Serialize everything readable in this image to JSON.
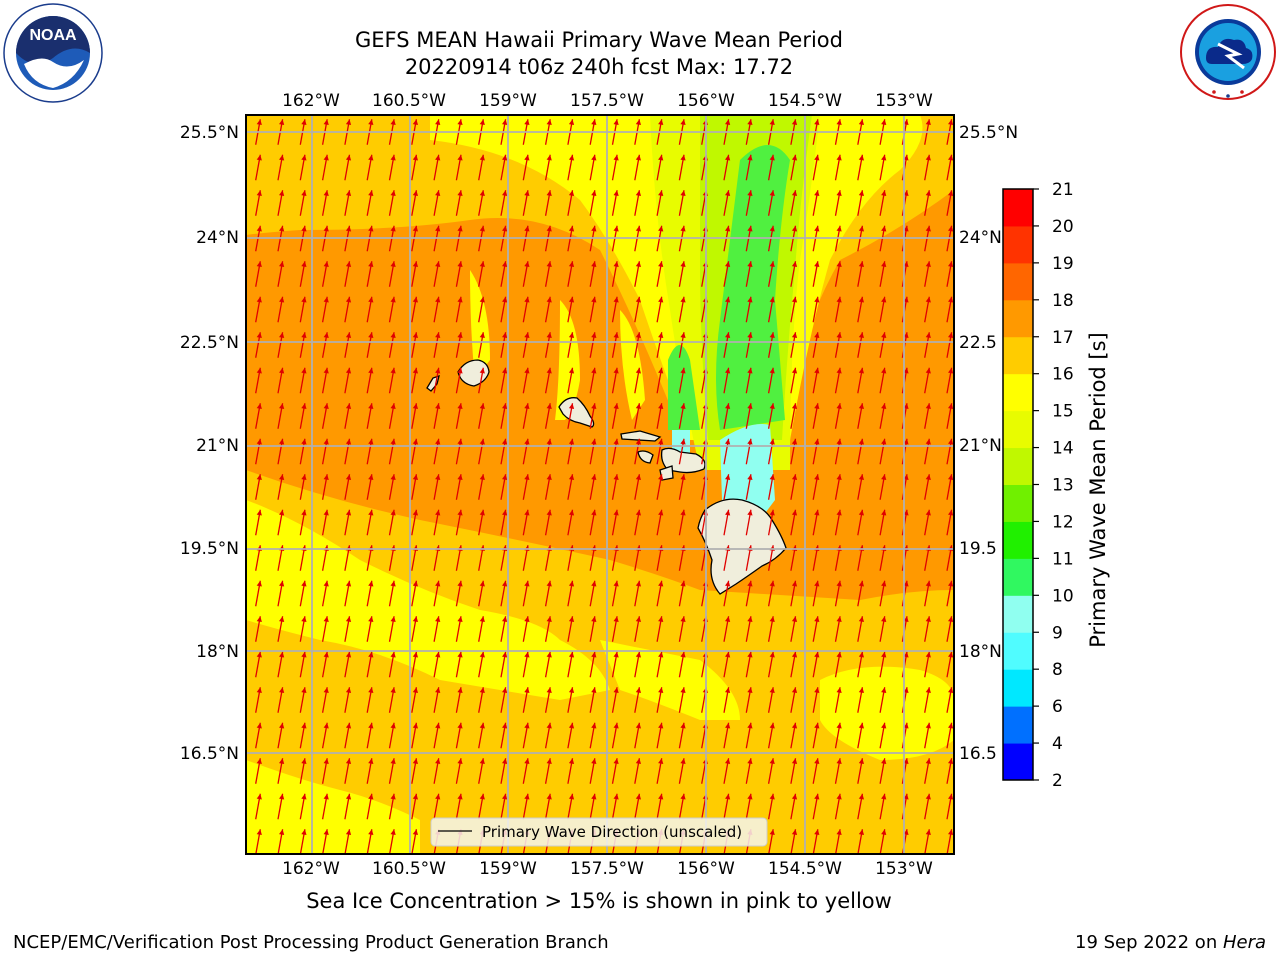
{
  "header": {
    "title_line1": "GEFS MEAN Hawaii Primary Wave Mean Period",
    "title_line2": "20220914 t06z 240h fcst   Max: 17.72"
  },
  "logos": {
    "noaa_text": "NOAA",
    "noaa_ring_text": "NATIONAL OCEANIC AND ATMOSPHERIC ADMINISTRATION · U.S. DEPARTMENT OF COMMERCE",
    "nws_ring_text": "NATIONAL WEATHER SERVICE"
  },
  "map": {
    "lon_ticks": [
      "162°W",
      "160.5°W",
      "159°W",
      "157.5°W",
      "156°W",
      "154.5°W",
      "153°W"
    ],
    "lat_ticks": [
      "25.5°N",
      "24°N",
      "22.5°N",
      "21°N",
      "19.5°N",
      "18°N",
      "16.5°N"
    ],
    "lat_ticks_right": [
      "25.5°N",
      "24°N",
      "22.5",
      "21°N",
      "19.5",
      "18°N",
      "16.5"
    ],
    "arrow_color": "#e00000",
    "gridline_color": "#b0b0b0",
    "legend_label": "Primary Wave Direction (unscaled)"
  },
  "colorbar": {
    "title": "Primary Wave Mean Period [s]",
    "levels": [
      2,
      4,
      6,
      8,
      9,
      10,
      11,
      12,
      13,
      14,
      15,
      16,
      17,
      18,
      19,
      20,
      21
    ],
    "colors": [
      "#0000ff",
      "#0070ff",
      "#00e8ff",
      "#50fcff",
      "#90fff0",
      "#30f860",
      "#20f000",
      "#70f000",
      "#c0f800",
      "#e8fc00",
      "#ffff00",
      "#ffcc00",
      "#ff9900",
      "#ff6600",
      "#ff3300",
      "#ff0000"
    ]
  },
  "field_colors": {
    "band_16_17": "#ffcc00",
    "band_17_18": "#ff9900",
    "band_15_16": "#ffff00",
    "band_14_15": "#e8fc00",
    "band_13_14": "#c0f800",
    "band_11_13": "#50f040",
    "band_9_10": "#90fff0",
    "land": "#f0eedc"
  },
  "footer": {
    "sea_ice_note": "Sea Ice Concentration > 15% is shown in pink to yellow",
    "credit": "NCEP/EMC/Verification Post Processing Product Generation Branch",
    "date_prefix": "19 Sep 2022 on ",
    "machine": "Hera"
  }
}
